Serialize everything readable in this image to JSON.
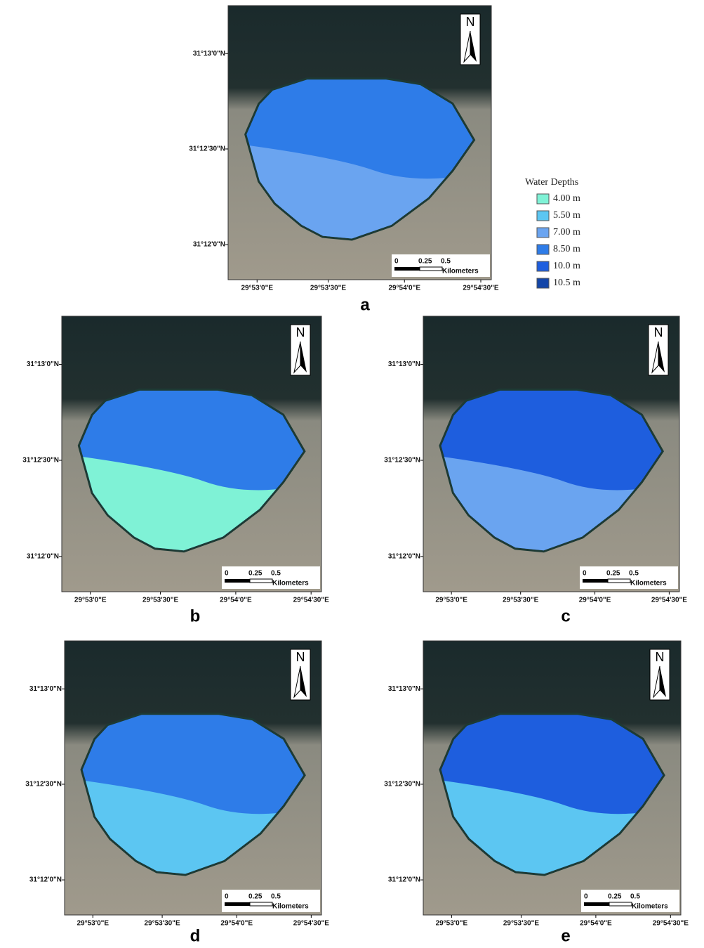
{
  "legend": {
    "title": "Water Depths",
    "items": [
      {
        "label": "4.00 m",
        "color": "#7ff2d6"
      },
      {
        "label": "5.50 m",
        "color": "#5cc6f2"
      },
      {
        "label": "7.00 m",
        "color": "#6aa4f0"
      },
      {
        "label": "8.50 m",
        "color": "#2e7ce8"
      },
      {
        "label": "10.0 m",
        "color": "#1e5ede"
      },
      {
        "label": "10.5 m",
        "color": "#1446a8"
      }
    ]
  },
  "panels": [
    {
      "label": "a",
      "north": "N",
      "lat_labels": [
        "31°13'0\"N",
        "31°12'30\"N",
        "31°12'0\"N"
      ],
      "lon_labels": [
        "29°53'0\"E",
        "29°53'30\"E",
        "29°54'0\"E",
        "29°54'30\"E"
      ],
      "scale": {
        "ticks": [
          "0",
          "0.25",
          "0.5"
        ],
        "unit": "Kilometers"
      }
    },
    {
      "label": "b",
      "north": "N",
      "lat_labels": [
        "31°13'0\"N",
        "31°12'30\"N",
        "31°12'0\"N"
      ],
      "lon_labels": [
        "29°53'0\"E",
        "29°53'30\"E",
        "29°54'0\"E",
        "29°54'30\"E"
      ],
      "scale": {
        "ticks": [
          "0",
          "0.25",
          "0.5"
        ],
        "unit": "Kilometers"
      }
    },
    {
      "label": "c",
      "north": "N",
      "lat_labels": [
        "31°13'0\"N",
        "31°12'30\"N",
        "31°12'0\"N"
      ],
      "lon_labels": [
        "29°53'0\"E",
        "29°53'30\"E",
        "29°54'0\"E",
        "29°54'30\"E"
      ],
      "scale": {
        "ticks": [
          "0",
          "0.25",
          "0.5"
        ],
        "unit": "Kilometers"
      }
    },
    {
      "label": "d",
      "north": "N",
      "lat_labels": [
        "31°13'0\"N",
        "31°12'30\"N",
        "31°12'0\"N"
      ],
      "lon_labels": [
        "29°53'0\"E",
        "29°53'30\"E",
        "29°54'0\"E",
        "29°54'30\"E"
      ],
      "scale": {
        "ticks": [
          "0",
          "0.25",
          "0.5"
        ],
        "unit": "Kilometers"
      }
    },
    {
      "label": "e",
      "north": "N",
      "lat_labels": [
        "31°13'0\"N",
        "31°12'30\"N",
        "31°12'0\"N"
      ],
      "lon_labels": [
        "29°53'0\"E",
        "29°53'30\"E",
        "29°54'0\"E",
        "29°54'30\"E"
      ],
      "scale": {
        "ticks": [
          "0",
          "0.25",
          "0.5"
        ],
        "unit": "Kilometers"
      }
    }
  ]
}
